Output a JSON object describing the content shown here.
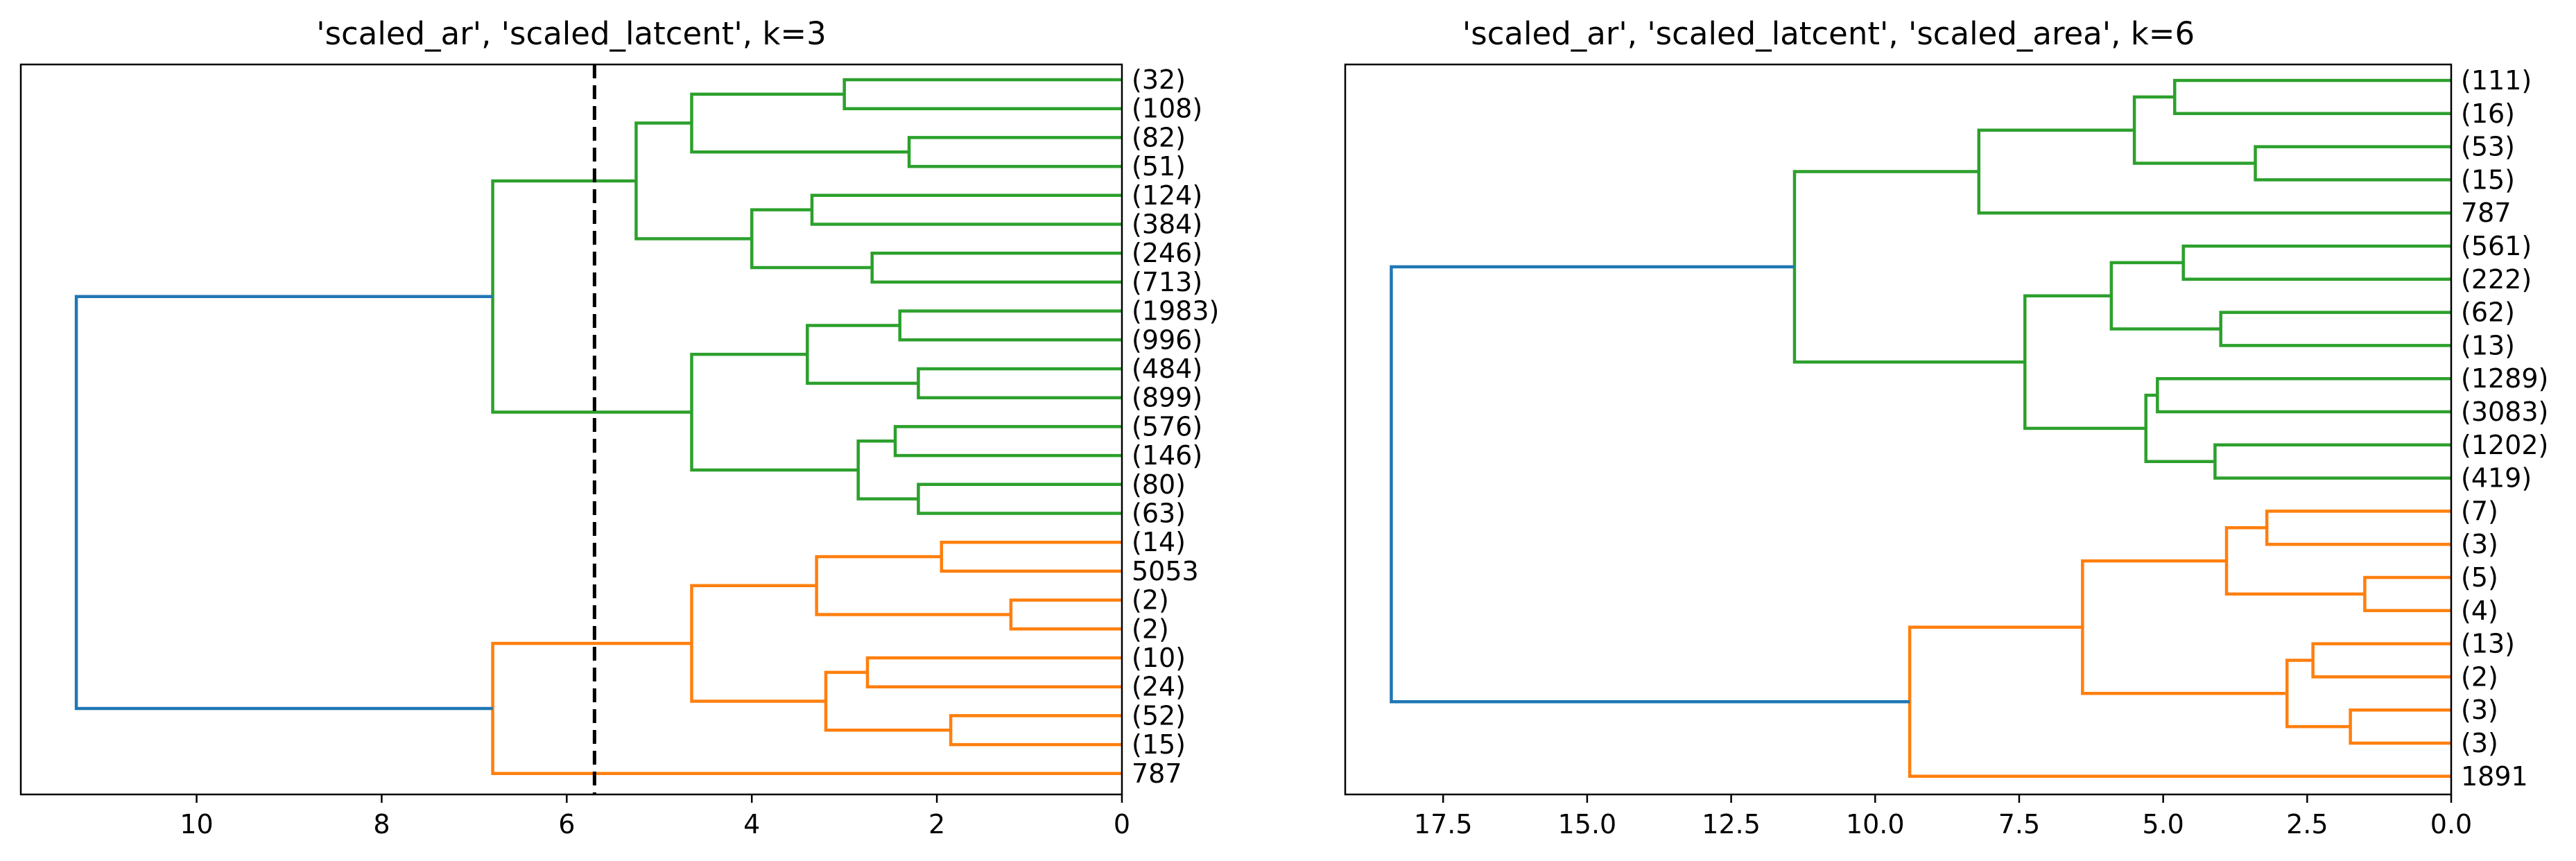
{
  "chart_data": [
    {
      "type": "dendrogram",
      "orientation": "left",
      "title": "'scaled_ar', 'scaled_latcent', k=3",
      "xlim": [
        11.9,
        0
      ],
      "xticks": [
        10,
        8,
        6,
        4,
        2,
        0
      ],
      "xtick_labels": [
        "10",
        "8",
        "6",
        "4",
        "2",
        "0"
      ],
      "cut_height": 5.7,
      "colors": {
        "above_cut": "#1f77b4",
        "cluster_1": "#2ca02c",
        "cluster_2": "#ff7f0e"
      },
      "leaf_labels": [
        "(32)",
        "(108)",
        "(82)",
        "(51)",
        "(124)",
        "(384)",
        "(246)",
        "(713)",
        "(1983)",
        "(996)",
        "(484)",
        "(899)",
        "(576)",
        "(146)",
        "(80)",
        "(63)",
        "(14)",
        "5053",
        "(2)",
        "(2)",
        "(10)",
        "(24)",
        "(52)",
        "(15)",
        "787"
      ],
      "merges": [
        {
          "a": 0,
          "b": 1,
          "h": 3.0,
          "color": "#2ca02c"
        },
        {
          "a": 2,
          "b": 3,
          "h": 2.3,
          "color": "#2ca02c"
        },
        {
          "a": 25,
          "b": 26,
          "h": 4.65,
          "color": "#2ca02c"
        },
        {
          "a": 4,
          "b": 5,
          "h": 3.35,
          "color": "#2ca02c"
        },
        {
          "a": 6,
          "b": 7,
          "h": 2.7,
          "color": "#2ca02c"
        },
        {
          "a": 28,
          "b": 29,
          "h": 4.0,
          "color": "#2ca02c"
        },
        {
          "a": 27,
          "b": 30,
          "h": 5.25,
          "color": "#2ca02c"
        },
        {
          "a": 8,
          "b": 9,
          "h": 2.4,
          "color": "#2ca02c"
        },
        {
          "a": 10,
          "b": 11,
          "h": 2.2,
          "color": "#2ca02c"
        },
        {
          "a": 32,
          "b": 33,
          "h": 3.4,
          "color": "#2ca02c"
        },
        {
          "a": 12,
          "b": 13,
          "h": 2.45,
          "color": "#2ca02c"
        },
        {
          "a": 14,
          "b": 15,
          "h": 2.2,
          "color": "#2ca02c"
        },
        {
          "a": 35,
          "b": 36,
          "h": 2.85,
          "color": "#2ca02c"
        },
        {
          "a": 34,
          "b": 37,
          "h": 4.65,
          "color": "#2ca02c"
        },
        {
          "a": 31,
          "b": 38,
          "h": 6.8,
          "color": "#2ca02c"
        },
        {
          "a": 16,
          "b": 17,
          "h": 1.95,
          "color": "#ff7f0e"
        },
        {
          "a": 18,
          "b": 19,
          "h": 1.2,
          "color": "#ff7f0e"
        },
        {
          "a": 40,
          "b": 41,
          "h": 3.3,
          "color": "#ff7f0e"
        },
        {
          "a": 20,
          "b": 21,
          "h": 2.75,
          "color": "#ff7f0e"
        },
        {
          "a": 22,
          "b": 23,
          "h": 1.85,
          "color": "#ff7f0e"
        },
        {
          "a": 43,
          "b": 44,
          "h": 3.2,
          "color": "#ff7f0e"
        },
        {
          "a": 42,
          "b": 45,
          "h": 4.65,
          "color": "#ff7f0e"
        },
        {
          "a": 46,
          "b": 24,
          "h": 6.8,
          "color": "#ff7f0e"
        },
        {
          "a": 39,
          "b": 47,
          "h": 11.3,
          "color": "#1f77b4"
        }
      ]
    },
    {
      "type": "dendrogram",
      "orientation": "left",
      "title": "'scaled_ar', 'scaled_latcent', 'scaled_area', k=6",
      "xlim": [
        19.2,
        0
      ],
      "xticks": [
        17.5,
        15.0,
        12.5,
        10.0,
        7.5,
        5.0,
        2.5,
        0.0
      ],
      "xtick_labels": [
        "17.5",
        "15.0",
        "12.5",
        "10.0",
        "7.5",
        "5.0",
        "2.5",
        "0.0"
      ],
      "colors": {
        "above_cut": "#1f77b4",
        "cluster_1": "#2ca02c",
        "cluster_2": "#ff7f0e"
      },
      "leaf_labels": [
        "(111)",
        "(16)",
        "(53)",
        "(15)",
        "787",
        "(561)",
        "(222)",
        "(62)",
        "(13)",
        "(1289)",
        "(3083)",
        "(1202)",
        "(419)",
        "(7)",
        "(3)",
        "(5)",
        "(4)",
        "(13)",
        "(2)",
        "(3)",
        "(3)",
        "1891"
      ],
      "merges": [
        {
          "a": 0,
          "b": 1,
          "h": 4.8,
          "color": "#2ca02c"
        },
        {
          "a": 2,
          "b": 3,
          "h": 3.4,
          "color": "#2ca02c"
        },
        {
          "a": 22,
          "b": 23,
          "h": 5.5,
          "color": "#2ca02c"
        },
        {
          "a": 24,
          "b": 4,
          "h": 8.2,
          "color": "#2ca02c"
        },
        {
          "a": 5,
          "b": 6,
          "h": 4.65,
          "color": "#2ca02c"
        },
        {
          "a": 7,
          "b": 8,
          "h": 4.0,
          "color": "#2ca02c"
        },
        {
          "a": 26,
          "b": 27,
          "h": 5.9,
          "color": "#2ca02c"
        },
        {
          "a": 9,
          "b": 10,
          "h": 5.1,
          "color": "#2ca02c"
        },
        {
          "a": 11,
          "b": 12,
          "h": 4.1,
          "color": "#2ca02c"
        },
        {
          "a": 29,
          "b": 30,
          "h": 5.3,
          "color": "#2ca02c"
        },
        {
          "a": 28,
          "b": 31,
          "h": 7.4,
          "color": "#2ca02c"
        },
        {
          "a": 25,
          "b": 32,
          "h": 11.4,
          "color": "#2ca02c"
        },
        {
          "a": 13,
          "b": 14,
          "h": 3.2,
          "color": "#ff7f0e"
        },
        {
          "a": 15,
          "b": 16,
          "h": 1.5,
          "color": "#ff7f0e"
        },
        {
          "a": 34,
          "b": 35,
          "h": 3.9,
          "color": "#ff7f0e"
        },
        {
          "a": 17,
          "b": 18,
          "h": 2.4,
          "color": "#ff7f0e"
        },
        {
          "a": 19,
          "b": 20,
          "h": 1.75,
          "color": "#ff7f0e"
        },
        {
          "a": 37,
          "b": 38,
          "h": 2.85,
          "color": "#ff7f0e"
        },
        {
          "a": 36,
          "b": 39,
          "h": 6.4,
          "color": "#ff7f0e"
        },
        {
          "a": 40,
          "b": 21,
          "h": 9.4,
          "color": "#ff7f0e"
        },
        {
          "a": 33,
          "b": 41,
          "h": 18.4,
          "color": "#1f77b4"
        }
      ]
    }
  ]
}
